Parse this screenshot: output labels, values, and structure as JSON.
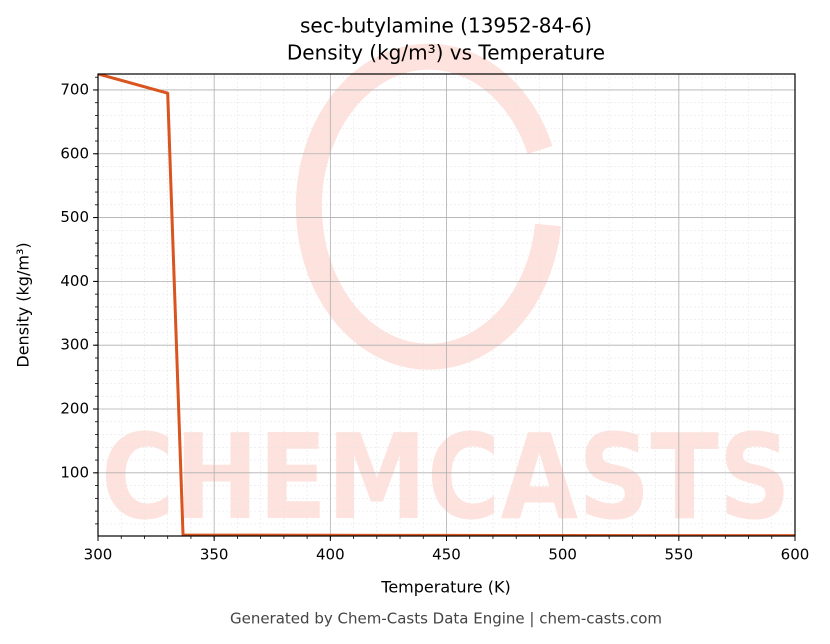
{
  "chart_data": {
    "type": "line",
    "title": "sec-butylamine (13952-84-6)",
    "subtitle": "Density (kg/m³) vs Temperature",
    "x_label": "Temperature (K)",
    "y_label": "Density (kg/m³)",
    "footer": "Generated by Chem-Casts Data Engine | chem-casts.com",
    "watermark": "CHEMCASTS",
    "x": [
      300,
      330,
      336.6,
      350,
      400,
      450,
      500,
      550,
      600
    ],
    "series": [
      {
        "name": "Density",
        "color": "#d9541e",
        "values": [
          725,
          695,
          2.5,
          2.4,
          2.1,
          1.9,
          1.7,
          1.6,
          1.5
        ]
      }
    ],
    "xlim": [
      300,
      600
    ],
    "xticks": [
      300,
      350,
      400,
      450,
      500,
      550,
      600
    ],
    "ylim": [
      1,
      725
    ],
    "yticks": [
      100,
      200,
      300,
      400,
      500,
      600,
      700
    ],
    "grid": true,
    "minor_grid": true
  }
}
